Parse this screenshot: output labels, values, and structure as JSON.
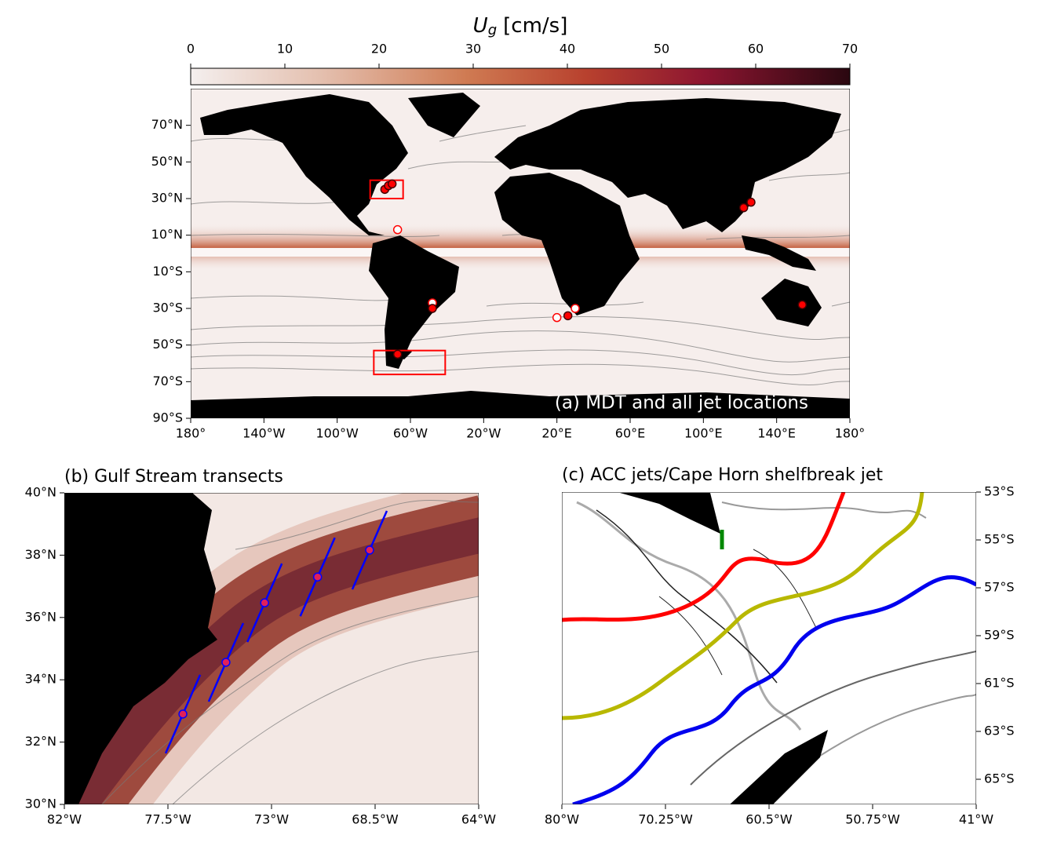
{
  "colorbar": {
    "label": "U",
    "label_sub": "g",
    "label_unit": "[cm/s]",
    "lim": [
      0,
      70
    ],
    "ticks": [
      0,
      10,
      20,
      30,
      40,
      50,
      60,
      70
    ]
  },
  "panel_a": {
    "title": "(a) MDT and all jet locations",
    "xlim": [
      -180,
      180
    ],
    "ylim": [
      -90,
      90
    ],
    "xticks": [
      {
        "value": -180,
        "label": "180°"
      },
      {
        "value": -140,
        "label": "140°W"
      },
      {
        "value": -100,
        "label": "100°W"
      },
      {
        "value": -60,
        "label": "60°W"
      },
      {
        "value": -20,
        "label": "20°W"
      },
      {
        "value": 20,
        "label": "20°E"
      },
      {
        "value": 60,
        "label": "60°E"
      },
      {
        "value": 100,
        "label": "100°E"
      },
      {
        "value": 140,
        "label": "140°E"
      },
      {
        "value": 180,
        "label": "180°"
      }
    ],
    "yticks": [
      {
        "value": 70,
        "label": "70°N"
      },
      {
        "value": 50,
        "label": "50°N"
      },
      {
        "value": 30,
        "label": "30°N"
      },
      {
        "value": 10,
        "label": "10°N"
      },
      {
        "value": -10,
        "label": "10°S"
      },
      {
        "value": -30,
        "label": "30°S"
      },
      {
        "value": -50,
        "label": "50°S"
      },
      {
        "value": -70,
        "label": "70°S"
      },
      {
        "value": -90,
        "label": "90°S"
      }
    ],
    "jets": {
      "lon": [
        -74,
        -72,
        -70,
        -67,
        -48,
        -48,
        20,
        26,
        30,
        122,
        126,
        154,
        -67
      ],
      "lat": [
        35,
        37,
        38,
        13,
        -27,
        -30,
        -35,
        -34,
        -30,
        25,
        28,
        -28,
        -55
      ],
      "fill": [
        "red",
        "red",
        "red",
        "white",
        "white",
        "red",
        "white",
        "red",
        "white",
        "red",
        "red",
        "red",
        "red"
      ]
    }
  },
  "panel_b": {
    "title": "(b) Gulf Stream transects",
    "xlim": [
      -82,
      -64
    ],
    "ylim": [
      30,
      40
    ],
    "xticks": [
      {
        "value": -82,
        "label": "82°W"
      },
      {
        "value": -77.5,
        "label": "77.5°W"
      },
      {
        "value": -73,
        "label": "73°W"
      },
      {
        "value": -68.5,
        "label": "68.5°W"
      },
      {
        "value": -64,
        "label": "64°W"
      }
    ],
    "yticks": [
      {
        "value": 30,
        "label": "30°N"
      },
      {
        "value": 32,
        "label": "32°N"
      },
      {
        "value": 34,
        "label": "34°N"
      },
      {
        "value": 36,
        "label": "36°N"
      },
      {
        "value": 38,
        "label": "38°N"
      },
      {
        "value": 40,
        "label": "40°N"
      }
    ],
    "transects": {
      "lon": [
        -76.85,
        -74.98,
        -73.3,
        -71.0,
        -68.74
      ],
      "lat": [
        32.9,
        34.56,
        36.47,
        37.3,
        38.16
      ]
    }
  },
  "panel_c": {
    "title": "(c) ACC jets/Cape Horn shelfbreak jet",
    "xlim": [
      -80,
      -41
    ],
    "ylim": [
      -66.05,
      -53
    ],
    "xticks": [
      {
        "value": -80,
        "label": "80°W"
      },
      {
        "value": -70.25,
        "label": "70.25°W"
      },
      {
        "value": -60.5,
        "label": "60.5°W"
      },
      {
        "value": -50.75,
        "label": "50.75°W"
      },
      {
        "value": -41,
        "label": "41°W"
      }
    ],
    "yticks": [
      {
        "value": -53,
        "label": "53°S"
      },
      {
        "value": -55,
        "label": "55°S"
      },
      {
        "value": -57,
        "label": "57°S"
      },
      {
        "value": -59,
        "label": "59°S"
      },
      {
        "value": -61,
        "label": "61°S"
      },
      {
        "value": -63,
        "label": "63°S"
      },
      {
        "value": -65,
        "label": "65°S"
      }
    ]
  }
}
